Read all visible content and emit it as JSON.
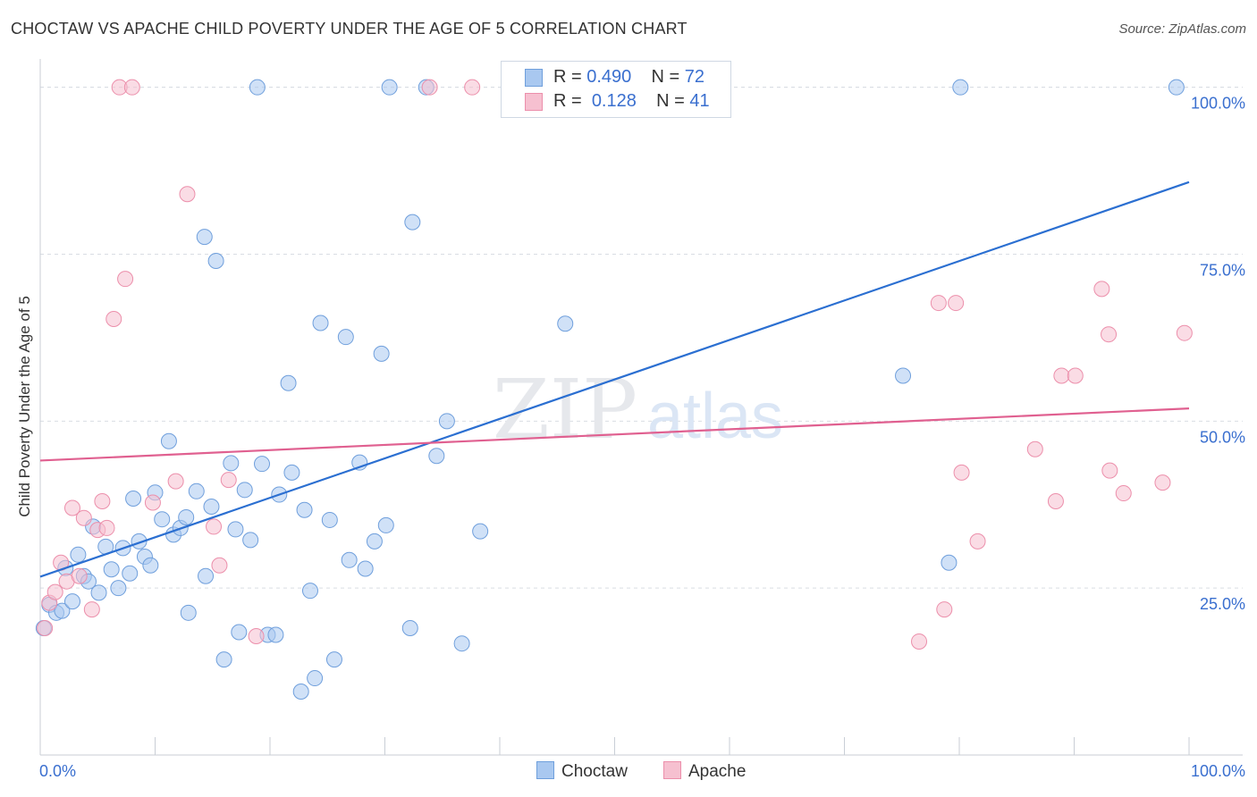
{
  "title": "CHOCTAW VS APACHE CHILD POVERTY UNDER THE AGE OF 5 CORRELATION CHART",
  "source": "Source: ZipAtlas.com",
  "watermark": {
    "zip": "ZIP",
    "atlas": "atlas"
  },
  "legend_top": [
    {
      "r_label": "R =",
      "r_value": "0.490",
      "n_label": "N =",
      "n_value": "72"
    },
    {
      "r_label": "R =",
      "r_value": "0.128",
      "n_label": "N =",
      "n_value": "41"
    }
  ],
  "legend_bottom": [
    "Choctaw",
    "Apache"
  ],
  "colors": {
    "choctaw_fill": "#a9c8f0",
    "choctaw_stroke": "#6f9fdc",
    "choctaw_line": "#2b6fd1",
    "apache_fill": "#f6c0d0",
    "apache_stroke": "#ec8fab",
    "apache_line": "#e06090",
    "tick_label": "#3a6fcf",
    "grid": "#d9dde3"
  },
  "chart_data": {
    "type": "scatter",
    "title": "CHOCTAW VS APACHE CHILD POVERTY UNDER THE AGE OF 5 CORRELATION CHART",
    "xlabel": "",
    "ylabel": "Child Poverty Under the Age of 5",
    "xlim": [
      0,
      100
    ],
    "ylim": [
      0,
      102.5
    ],
    "x_tick_labels": [
      "0.0%",
      "100.0%"
    ],
    "y_ticks": [
      25,
      50,
      75,
      100
    ],
    "y_tick_labels": [
      "25.0%",
      "50.0%",
      "75.0%",
      "100.0%"
    ],
    "series": [
      {
        "name": "Choctaw",
        "R": 0.49,
        "N": 72,
        "trend": {
          "x": [
            0,
            100
          ],
          "y": [
            26.7,
            85.8
          ]
        },
        "points": [
          [
            0.3,
            19.0
          ],
          [
            0.8,
            22.5
          ],
          [
            1.4,
            21.3
          ],
          [
            1.9,
            21.6
          ],
          [
            2.2,
            28.0
          ],
          [
            2.8,
            23.0
          ],
          [
            3.3,
            30.0
          ],
          [
            3.8,
            26.8
          ],
          [
            4.2,
            26.0
          ],
          [
            4.6,
            34.2
          ],
          [
            5.1,
            24.3
          ],
          [
            5.7,
            31.2
          ],
          [
            6.2,
            27.8
          ],
          [
            6.8,
            25.0
          ],
          [
            7.2,
            31.0
          ],
          [
            7.8,
            27.2
          ],
          [
            8.1,
            38.4
          ],
          [
            8.6,
            32.0
          ],
          [
            9.1,
            29.7
          ],
          [
            9.6,
            28.4
          ],
          [
            10.0,
            39.3
          ],
          [
            10.6,
            35.3
          ],
          [
            11.2,
            47.0
          ],
          [
            11.6,
            33.0
          ],
          [
            12.2,
            34.0
          ],
          [
            12.7,
            35.6
          ],
          [
            12.9,
            21.3
          ],
          [
            13.6,
            39.5
          ],
          [
            14.3,
            77.6
          ],
          [
            14.4,
            26.8
          ],
          [
            14.9,
            37.2
          ],
          [
            15.3,
            74.0
          ],
          [
            16.0,
            14.3
          ],
          [
            16.6,
            43.7
          ],
          [
            17.0,
            33.8
          ],
          [
            17.3,
            18.4
          ],
          [
            17.8,
            39.7
          ],
          [
            18.3,
            32.2
          ],
          [
            18.9,
            100.0
          ],
          [
            19.3,
            43.6
          ],
          [
            19.8,
            18.0
          ],
          [
            20.5,
            18.0
          ],
          [
            20.8,
            39.0
          ],
          [
            21.6,
            55.7
          ],
          [
            21.9,
            42.3
          ],
          [
            22.7,
            9.5
          ],
          [
            23.0,
            36.7
          ],
          [
            23.5,
            24.6
          ],
          [
            23.9,
            11.5
          ],
          [
            24.4,
            64.7
          ],
          [
            25.2,
            35.2
          ],
          [
            25.6,
            14.3
          ],
          [
            26.6,
            62.6
          ],
          [
            26.9,
            29.2
          ],
          [
            27.8,
            43.8
          ],
          [
            28.3,
            27.9
          ],
          [
            29.1,
            32.0
          ],
          [
            29.7,
            60.1
          ],
          [
            30.1,
            34.4
          ],
          [
            30.4,
            100.0
          ],
          [
            32.2,
            19.0
          ],
          [
            32.4,
            79.8
          ],
          [
            33.6,
            100.0
          ],
          [
            34.5,
            44.8
          ],
          [
            35.4,
            50.0
          ],
          [
            36.7,
            16.7
          ],
          [
            38.3,
            33.5
          ],
          [
            45.7,
            64.6
          ],
          [
            75.1,
            56.8
          ],
          [
            79.1,
            28.8
          ],
          [
            80.1,
            100.0
          ],
          [
            98.9,
            100.0
          ]
        ]
      },
      {
        "name": "Apache",
        "R": 0.128,
        "N": 41,
        "trend": {
          "x": [
            0,
            100
          ],
          "y": [
            44.1,
            51.9
          ]
        },
        "points": [
          [
            0.4,
            19.0
          ],
          [
            0.8,
            22.8
          ],
          [
            1.3,
            24.4
          ],
          [
            1.8,
            28.8
          ],
          [
            2.3,
            26.0
          ],
          [
            2.8,
            37.0
          ],
          [
            3.4,
            26.8
          ],
          [
            3.8,
            35.5
          ],
          [
            4.5,
            21.8
          ],
          [
            5.0,
            33.7
          ],
          [
            5.4,
            38.0
          ],
          [
            5.8,
            34.0
          ],
          [
            6.4,
            65.3
          ],
          [
            6.9,
            100.0
          ],
          [
            7.4,
            71.3
          ],
          [
            8.0,
            100.0
          ],
          [
            9.8,
            37.8
          ],
          [
            11.8,
            41.0
          ],
          [
            12.8,
            84.0
          ],
          [
            15.1,
            34.2
          ],
          [
            15.6,
            28.4
          ],
          [
            16.4,
            41.2
          ],
          [
            18.8,
            17.8
          ],
          [
            33.9,
            100.0
          ],
          [
            37.6,
            100.0
          ],
          [
            76.5,
            17.0
          ],
          [
            78.2,
            67.7
          ],
          [
            78.7,
            21.8
          ],
          [
            79.7,
            67.7
          ],
          [
            80.2,
            42.3
          ],
          [
            81.6,
            32.0
          ],
          [
            86.6,
            45.8
          ],
          [
            88.4,
            38.0
          ],
          [
            88.9,
            56.8
          ],
          [
            90.1,
            56.8
          ],
          [
            92.4,
            69.8
          ],
          [
            93.0,
            63.0
          ],
          [
            93.1,
            42.6
          ],
          [
            94.3,
            39.2
          ],
          [
            97.7,
            40.8
          ],
          [
            99.6,
            63.2
          ]
        ]
      }
    ]
  }
}
